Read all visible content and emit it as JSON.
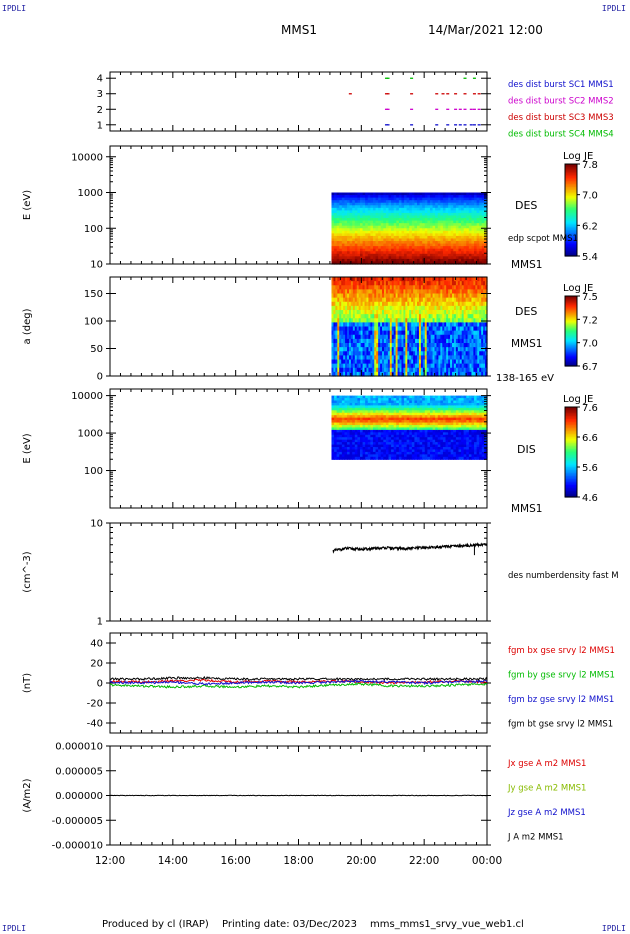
{
  "header": {
    "spacecraft": "MMS1",
    "datetime": "14/Mar/2021 12:00"
  },
  "corner_label": "IPDLI",
  "footer": {
    "producer": "Produced by cl (IRAP)",
    "printing_date": "Printing date: 03/Dec/2023",
    "filename": "mms_mms1_srvy_vue_web1.cl"
  },
  "x_axis": {
    "ticks": [
      "12:00",
      "14:00",
      "16:00",
      "18:00",
      "20:00",
      "22:00",
      "00:00"
    ],
    "range_hours": [
      12,
      24
    ]
  },
  "chart_data": [
    {
      "type": "scatter",
      "id": "burst",
      "ylim": [
        0.6,
        4.4
      ],
      "yticks": [
        "1",
        "2",
        "3",
        "4"
      ],
      "legend": [
        {
          "text": "des dist burst SC1 MMS1",
          "color": "#1010cc"
        },
        {
          "text": "des dist burst SC2 MMS2",
          "color": "#cc00cc"
        },
        {
          "text": "des dist burst SC3 MMS3",
          "color": "#cc0000"
        },
        {
          "text": "des dist burst SC4 MMS4",
          "color": "#00bb00"
        }
      ],
      "series": [
        {
          "level": 1,
          "color": "#1010cc",
          "x": [
            20.8,
            20.85,
            21.6,
            22.4,
            22.75,
            23.0,
            23.15,
            23.3,
            23.5,
            23.6,
            23.75
          ]
        },
        {
          "level": 2,
          "color": "#cc00cc",
          "x": [
            20.8,
            20.85,
            21.6,
            22.4,
            22.75,
            23.0,
            23.15,
            23.3,
            23.5,
            23.6,
            23.75
          ]
        },
        {
          "level": 3,
          "color": "#cc0000",
          "x": [
            19.65,
            20.8,
            20.85,
            21.6,
            22.4,
            22.6,
            22.75,
            23.0,
            23.3,
            23.6,
            23.75
          ]
        },
        {
          "level": 4,
          "color": "#00bb00",
          "x": [
            20.8,
            20.85,
            21.6,
            23.3,
            23.6
          ]
        }
      ]
    },
    {
      "type": "heatmap",
      "id": "des-energy",
      "ylabel": "E (eV)",
      "yscale": "log",
      "ylim": [
        10,
        20000
      ],
      "yticks": [
        "10",
        "100",
        "1000",
        "10000"
      ],
      "data_x_range": [
        19.05,
        24.0
      ],
      "data_y_range": [
        10,
        1000
      ],
      "label": "DES",
      "label_right": "edp scpot MMS1",
      "instrument": "MMS1",
      "colorbar": {
        "title": "Log JE",
        "ticks": [
          "7.8",
          "7.0",
          "6.2",
          "5.4"
        ],
        "range": [
          5.4,
          7.8
        ]
      }
    },
    {
      "type": "heatmap",
      "id": "des-pitch",
      "ylabel": "a (deg)",
      "ylim": [
        0,
        180
      ],
      "yticks": [
        "0",
        "50",
        "100",
        "150"
      ],
      "data_x_range": [
        19.05,
        24.0
      ],
      "data_y_range": [
        0,
        180
      ],
      "label": "DES",
      "instrument": "MMS1",
      "energy_band": "138-165 eV",
      "colorbar": {
        "title": "Log JE",
        "ticks": [
          "7.5",
          "7.2",
          "7.0",
          "6.7"
        ],
        "range": [
          6.7,
          7.5
        ]
      }
    },
    {
      "type": "heatmap",
      "id": "dis-energy",
      "ylabel": "E (eV)",
      "yscale": "log",
      "ylim": [
        10,
        15000
      ],
      "yticks": [
        "100",
        "1000",
        "10000"
      ],
      "data_x_range": [
        19.05,
        24.0
      ],
      "data_y_range": [
        200,
        10000
      ],
      "label": "DIS",
      "instrument": "MMS1",
      "colorbar": {
        "title": "Log JE",
        "ticks": [
          "7.6",
          "6.6",
          "5.6",
          "4.6"
        ],
        "range": [
          4.6,
          7.6
        ]
      }
    },
    {
      "type": "line",
      "id": "density",
      "ylabel": "(cm^-3)",
      "yscale": "log",
      "ylim": [
        1,
        10
      ],
      "yticks": [
        "1",
        "10"
      ],
      "legend": [
        {
          "text": "des numberdensity fast M",
          "color": "#000000"
        }
      ],
      "series": [
        {
          "name": "des numberdensity fast M",
          "color": "#000000",
          "x": [
            19.1,
            19.5,
            20.0,
            20.5,
            20.8,
            21.0,
            21.5,
            22.0,
            22.5,
            23.0,
            23.5,
            24.0
          ],
          "y": [
            5.2,
            5.5,
            5.4,
            5.5,
            5.6,
            5.5,
            5.5,
            5.6,
            5.7,
            5.8,
            5.9,
            6.1
          ]
        }
      ]
    },
    {
      "type": "line",
      "id": "fgm",
      "ylabel": "(nT)",
      "ylim": [
        -50,
        50
      ],
      "yticks": [
        "-40",
        "-20",
        "0",
        "20",
        "40"
      ],
      "legend": [
        {
          "text": "fgm bx gse srvy l2 MMS1",
          "color": "#dd0000"
        },
        {
          "text": "fgm by gse srvy l2 MMS1",
          "color": "#00bb00"
        },
        {
          "text": "fgm bz gse srvy l2 MMS1",
          "color": "#1010cc"
        },
        {
          "text": "fgm bt gse srvy l2 MMS1",
          "color": "#000000"
        }
      ],
      "series": [
        {
          "name": "fgm bx gse srvy l2 MMS1",
          "color": "#dd0000",
          "x": [
            12,
            13,
            14,
            15,
            16,
            17,
            18,
            19,
            20,
            21,
            22,
            23,
            24
          ],
          "y": [
            2,
            1,
            2,
            3,
            1,
            2,
            1,
            2,
            1,
            0,
            1,
            2,
            1
          ]
        },
        {
          "name": "fgm by gse srvy l2 MMS1",
          "color": "#00bb00",
          "x": [
            12,
            13,
            14,
            15,
            16,
            17,
            18,
            19,
            20,
            21,
            22,
            23,
            24
          ],
          "y": [
            -2,
            -3,
            -4,
            -3,
            -4,
            -3,
            -4,
            -2,
            -1,
            -3,
            -3,
            -2,
            -1
          ]
        },
        {
          "name": "fgm bz gse srvy l2 MMS1",
          "color": "#1010cc",
          "x": [
            12,
            13,
            14,
            15,
            16,
            17,
            18,
            19,
            20,
            21,
            22,
            23,
            24
          ],
          "y": [
            1,
            0,
            1,
            -1,
            0,
            1,
            0,
            1,
            2,
            1,
            0,
            1,
            2
          ]
        },
        {
          "name": "fgm bt gse srvy l2 MMS1",
          "color": "#000000",
          "x": [
            12,
            13,
            14,
            15,
            16,
            17,
            18,
            19,
            20,
            21,
            22,
            23,
            24
          ],
          "y": [
            4,
            4,
            5,
            5,
            4,
            4,
            4,
            4,
            4,
            4,
            4,
            4,
            4
          ]
        }
      ]
    },
    {
      "type": "line",
      "id": "current",
      "ylabel": "(A/m2)",
      "ylim": [
        -1e-05,
        1e-05
      ],
      "yticks": [
        "-0.000010",
        "-0.000005",
        "0.000000",
        "0.000005",
        "0.000010"
      ],
      "legend": [
        {
          "text": "Jx gse A m2 MMS1",
          "color": "#dd0000"
        },
        {
          "text": "Jy gse A m2 MMS1",
          "color": "#88bb00"
        },
        {
          "text": "Jz gse A m2 MMS1",
          "color": "#1010cc"
        },
        {
          "text": "J A m2 MMS1",
          "color": "#000000"
        }
      ],
      "series": [
        {
          "name": "J A m2 MMS1",
          "color": "#000000",
          "x": [
            12,
            24
          ],
          "y": [
            0,
            0
          ]
        }
      ]
    }
  ]
}
